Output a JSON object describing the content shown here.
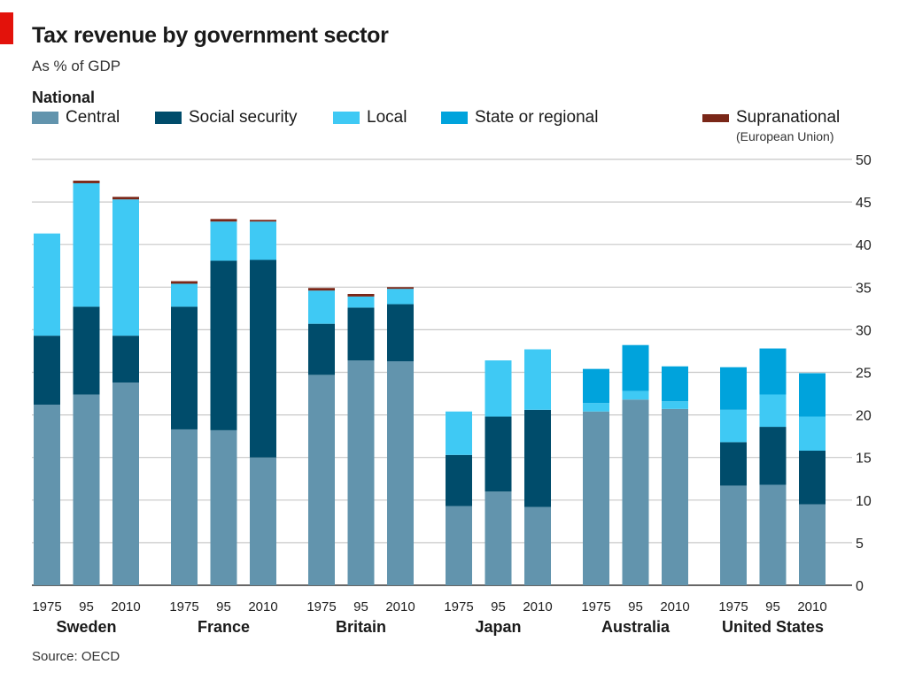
{
  "title": "Tax revenue by government sector",
  "subtitle": "As % of GDP",
  "legend_group_label": "National",
  "legend": [
    {
      "key": "central",
      "label": "Central",
      "color": "#6294ad"
    },
    {
      "key": "social",
      "label": "Social security",
      "color": "#004c6b"
    },
    {
      "key": "local",
      "label": "Local",
      "color": "#3fc9f4"
    },
    {
      "key": "state",
      "label": "State or regional",
      "color": "#00a3dc"
    },
    {
      "key": "supra",
      "label": "Supranational",
      "color": "#7a2718"
    }
  ],
  "legend_note": "(European Union)",
  "source": "Source: OECD",
  "chart_data": {
    "type": "bar",
    "stacked": true,
    "ylim": [
      0,
      50
    ],
    "yticks": [
      0,
      5,
      10,
      15,
      20,
      25,
      30,
      35,
      40,
      45,
      50
    ],
    "grid": true,
    "y_axis_side": "right",
    "groups": [
      {
        "name": "Sweden",
        "bars": [
          {
            "label": "1975",
            "central": 21.2,
            "social": 8.1,
            "local": 12.0,
            "state": 0,
            "supra": 0
          },
          {
            "label": "95",
            "central": 22.4,
            "social": 10.3,
            "local": 14.5,
            "state": 0,
            "supra": 0.3
          },
          {
            "label": "2010",
            "central": 23.8,
            "social": 5.5,
            "local": 16.0,
            "state": 0,
            "supra": 0.3
          }
        ]
      },
      {
        "name": "France",
        "bars": [
          {
            "label": "1975",
            "central": 18.3,
            "social": 14.4,
            "local": 2.7,
            "state": 0,
            "supra": 0.3
          },
          {
            "label": "95",
            "central": 18.2,
            "social": 19.9,
            "local": 4.6,
            "state": 0,
            "supra": 0.3
          },
          {
            "label": "2010",
            "central": 15.0,
            "social": 23.2,
            "local": 4.5,
            "state": 0,
            "supra": 0.2
          }
        ]
      },
      {
        "name": "Britain",
        "bars": [
          {
            "label": "1975",
            "central": 24.7,
            "social": 6.0,
            "local": 3.9,
            "state": 0,
            "supra": 0.3
          },
          {
            "label": "95",
            "central": 26.4,
            "social": 6.2,
            "local": 1.3,
            "state": 0,
            "supra": 0.3
          },
          {
            "label": "2010",
            "central": 26.3,
            "social": 6.7,
            "local": 1.8,
            "state": 0,
            "supra": 0.2
          }
        ]
      },
      {
        "name": "Japan",
        "bars": [
          {
            "label": "1975",
            "central": 9.3,
            "social": 6.0,
            "local": 5.1,
            "state": 0,
            "supra": 0
          },
          {
            "label": "95",
            "central": 11.0,
            "social": 8.8,
            "local": 6.6,
            "state": 0,
            "supra": 0
          },
          {
            "label": "2010",
            "central": 9.2,
            "social": 11.4,
            "local": 7.1,
            "state": 0,
            "supra": 0
          }
        ]
      },
      {
        "name": "Australia",
        "bars": [
          {
            "label": "1975",
            "central": 20.4,
            "social": 0,
            "local": 1.0,
            "state": 4.0,
            "supra": 0
          },
          {
            "label": "95",
            "central": 21.8,
            "social": 0,
            "local": 1.0,
            "state": 5.4,
            "supra": 0
          },
          {
            "label": "2010",
            "central": 20.7,
            "social": 0,
            "local": 0.9,
            "state": 4.1,
            "supra": 0
          }
        ]
      },
      {
        "name": "United States",
        "bars": [
          {
            "label": "1975",
            "central": 11.7,
            "social": 5.1,
            "local": 3.8,
            "state": 5.0,
            "supra": 0
          },
          {
            "label": "95",
            "central": 11.8,
            "social": 6.8,
            "local": 3.8,
            "state": 5.4,
            "supra": 0
          },
          {
            "label": "2010",
            "central": 9.5,
            "social": 6.3,
            "local": 4.0,
            "state": 5.1,
            "supra": 0
          }
        ]
      }
    ]
  }
}
